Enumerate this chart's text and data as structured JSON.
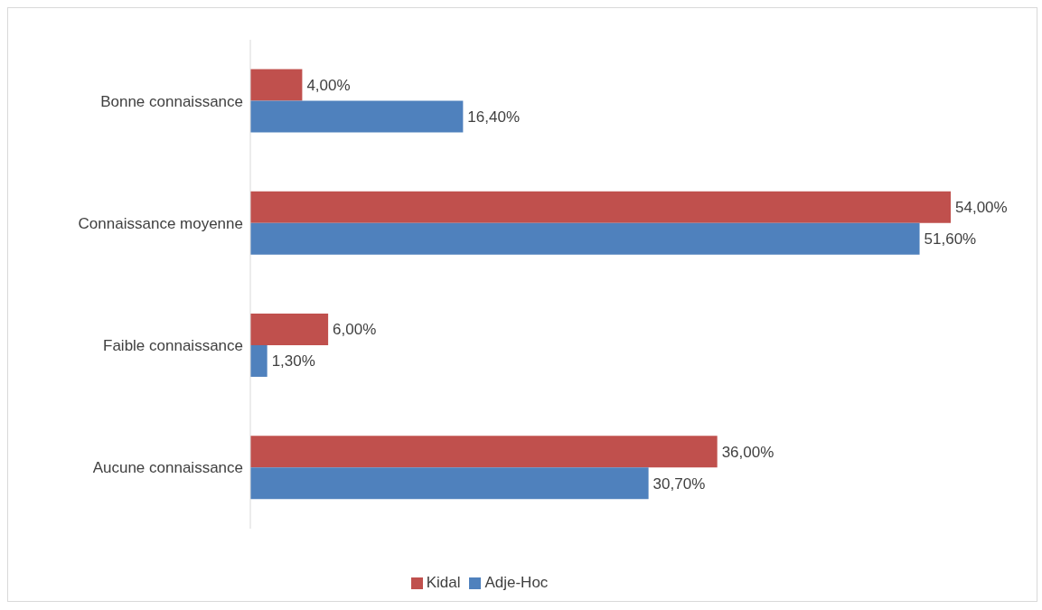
{
  "chart_data": {
    "type": "bar",
    "orientation": "horizontal",
    "categories": [
      "Bonne connaissance",
      "Connaissance moyenne",
      "Faible connaissance",
      "Aucune connaissance"
    ],
    "series": [
      {
        "name": "Kidal",
        "color": "#c0504d",
        "values": [
          4,
          54,
          6,
          36
        ],
        "value_labels": [
          "4,00%",
          "54,00%",
          "6,00%",
          "36,00%"
        ]
      },
      {
        "name": "Adje-Hoc",
        "color": "#4f81bd",
        "values": [
          16.4,
          51.6,
          1.3,
          30.7
        ],
        "value_labels": [
          "16,40%",
          "51,60%",
          "1,30%",
          "30,70%"
        ]
      }
    ],
    "legend": "bottom",
    "grid": false
  }
}
